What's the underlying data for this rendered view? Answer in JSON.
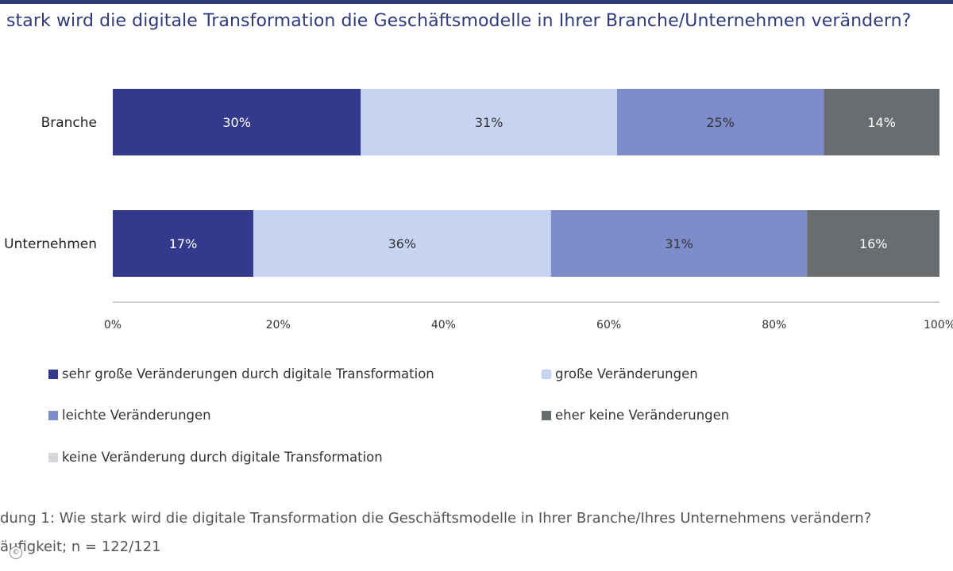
{
  "title": "stark wird die digitale Transformation die Geschäftsmodelle in Ihrer Branche/Unternehmen verändern?",
  "chart_data": {
    "type": "bar",
    "orientation": "horizontal",
    "stacked": true,
    "categories": [
      "Branche",
      "Unternehmen"
    ],
    "series": [
      {
        "name": "sehr große Veränderungen durch digitale Transformation",
        "values": [
          30,
          17
        ],
        "labels": [
          "30%",
          "17%"
        ],
        "color": "#333a8c"
      },
      {
        "name": "große Veränderungen",
        "values": [
          31,
          36
        ],
        "labels": [
          "31%",
          "36%"
        ],
        "color": "#c6d4f2"
      },
      {
        "name": "leichte Veränderungen",
        "values": [
          25,
          31
        ],
        "labels": [
          "25%",
          "31%"
        ],
        "color": "#7d8dcb"
      },
      {
        "name": "eher keine Veränderungen",
        "values": [
          14,
          16
        ],
        "labels": [
          "14%",
          "16%"
        ],
        "color": "#6a6d6f"
      },
      {
        "name": "keine Veränderung durch digitale Transformation",
        "values": [
          0,
          0
        ],
        "labels": [
          "",
          ""
        ],
        "color": "#d4d6d9"
      }
    ],
    "xlim": [
      0,
      100
    ],
    "xticks": [
      "0%",
      "20%",
      "40%",
      "60%",
      "80%",
      "100%"
    ],
    "grid": false,
    "legend_position": "bottom"
  },
  "caption": {
    "line1": "dung 1: Wie stark wird die digitale Transformation die Geschäftsmodelle in Ihrer Branche/Ihres Unternehmens verändern?",
    "line2": "äufigkeit; n = 122/121"
  },
  "copyright_symbol": "©"
}
